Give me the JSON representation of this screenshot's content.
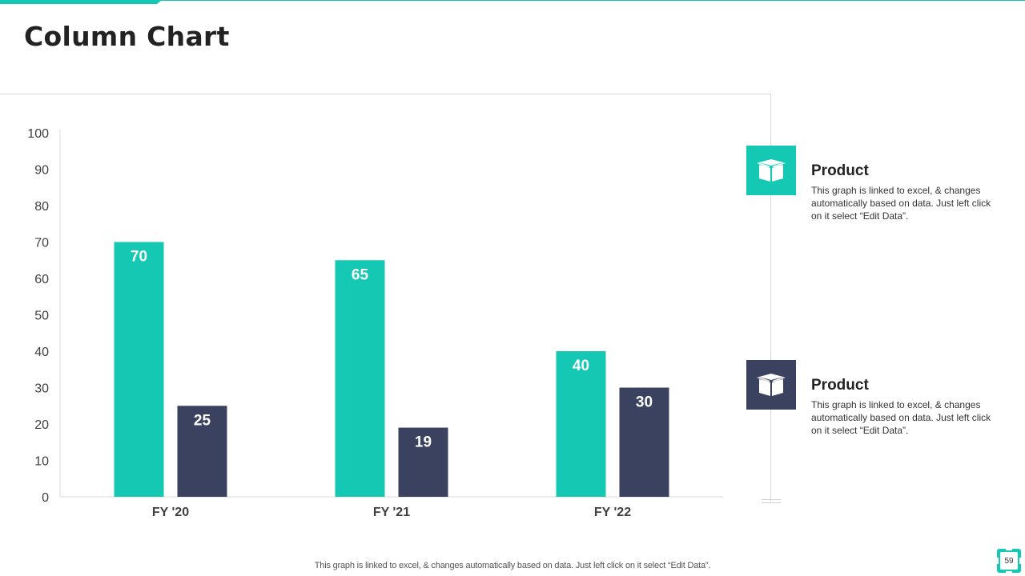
{
  "slide": {
    "title": "Column Chart",
    "footer_note": "This graph is linked to excel, & changes automatically based on data. Just left click on it select “Edit Data”.",
    "page_number": "59"
  },
  "colors": {
    "accent": "#14c8b4",
    "navy": "#3a4260",
    "axis": "#d9d9d9"
  },
  "legend": {
    "items": [
      {
        "title": "Product",
        "description": "This graph is linked to excel, & changes automatically based on data. Just left click on it select “Edit Data”.",
        "color": "#14c8b4",
        "icon": "box-icon"
      },
      {
        "title": "Product",
        "description": "This graph is linked to excel, & changes automatically based on data. Just left click on it select “Edit Data”.",
        "color": "#3a4260",
        "icon": "box-icon"
      }
    ]
  },
  "chart_data": {
    "type": "bar",
    "categories": [
      "FY '20",
      "FY '21",
      "FY '22"
    ],
    "series": [
      {
        "values": [
          70,
          65,
          40
        ],
        "color": "#14c8b4"
      },
      {
        "values": [
          25,
          19,
          30
        ],
        "color": "#3a4260"
      }
    ],
    "title": "",
    "xlabel": "",
    "ylabel": "",
    "ylim": [
      0,
      100
    ],
    "yticks": [
      0,
      10,
      20,
      30,
      40,
      50,
      60,
      70,
      80,
      90,
      100
    ],
    "grid": false,
    "data_labels": true
  }
}
